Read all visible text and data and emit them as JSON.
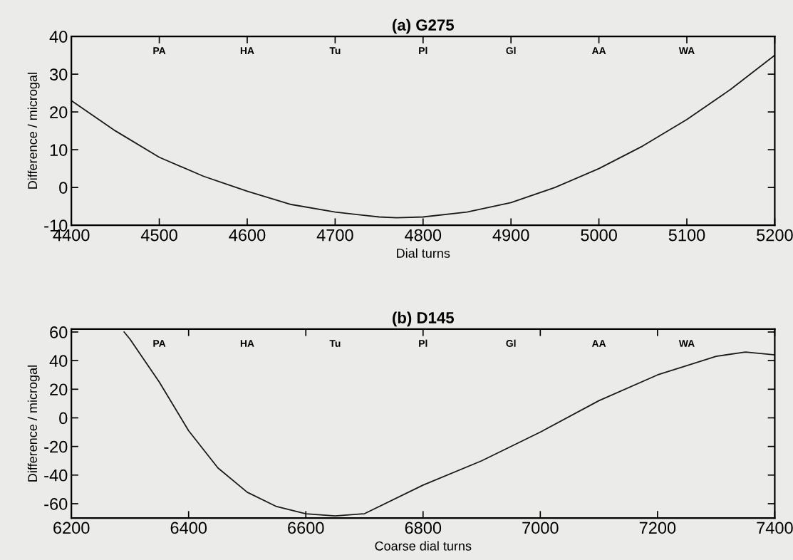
{
  "chart_data": [
    {
      "type": "line",
      "title": "(a) G275",
      "xlabel": "Dial turns",
      "ylabel": "Difference / microgal",
      "x": [
        4400,
        4450,
        4500,
        4550,
        4600,
        4650,
        4700,
        4750,
        4770,
        4800,
        4850,
        4900,
        4950,
        5000,
        5050,
        5100,
        5150,
        5200
      ],
      "series": [
        {
          "color": "#1a1a1a",
          "values": [
            23,
            15,
            8,
            3,
            -1,
            -4.5,
            -6.5,
            -7.8,
            -8,
            -7.8,
            -6.5,
            -4,
            0,
            5,
            11,
            18,
            26,
            35
          ]
        }
      ],
      "xlim": [
        4400,
        5200
      ],
      "ylim": [
        -10,
        40
      ],
      "xticks": [
        4400,
        4500,
        4600,
        4700,
        4800,
        4900,
        5000,
        5100,
        5200
      ],
      "yticks": [
        -10,
        0,
        10,
        20,
        30,
        40
      ],
      "grid": false,
      "marker": "none",
      "line_style": "solid",
      "annotations": [
        "PA",
        "HA",
        "Tu",
        "Pl",
        "Gl",
        "AA",
        "WA"
      ]
    },
    {
      "type": "line",
      "title": "(b) D145",
      "xlabel": "Coarse dial turns",
      "ylabel": "Difference / microgal",
      "x": [
        6290,
        6300,
        6350,
        6400,
        6450,
        6500,
        6550,
        6600,
        6650,
        6700,
        6800,
        6900,
        7000,
        7100,
        7200,
        7300,
        7350,
        7400
      ],
      "series": [
        {
          "color": "#1a1a1a",
          "values": [
            60,
            55,
            25,
            -9,
            -35,
            -52,
            -62,
            -67,
            -68.5,
            -67,
            -47,
            -30,
            -10,
            12,
            30,
            43,
            46,
            44
          ]
        }
      ],
      "xlim": [
        6200,
        7400
      ],
      "ylim": [
        -70,
        62
      ],
      "xticks": [
        6200,
        6400,
        6600,
        6800,
        7000,
        7200,
        7400
      ],
      "yticks": [
        -60,
        -40,
        -20,
        0,
        20,
        40,
        60
      ],
      "grid": false,
      "marker": "none",
      "line_style": "solid",
      "annotations": [
        "PA",
        "HA",
        "Tu",
        "Pl",
        "Gl",
        "AA",
        "WA"
      ]
    }
  ]
}
